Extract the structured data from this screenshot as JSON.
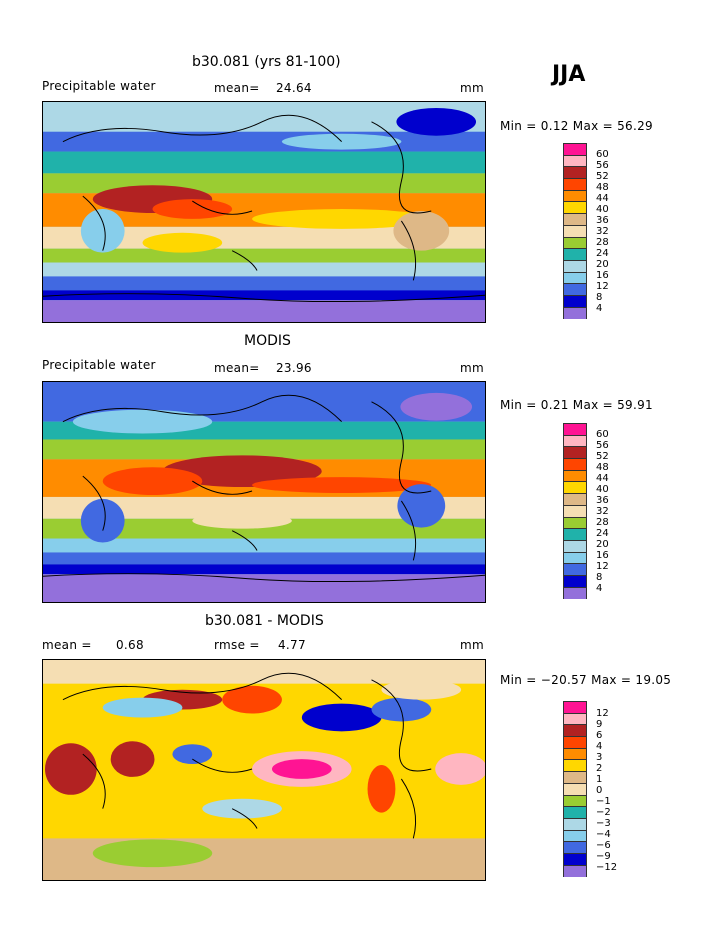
{
  "season": "JJA",
  "panels": [
    {
      "title": "b30.081 (yrs 81-100)",
      "left_label": "Precipitable water",
      "mean_label": "mean=",
      "mean_value": "24.64",
      "unit": "mm",
      "minmax_text": "Min =   0.12 Max =  56.29",
      "colorbar_ticks": [
        "60",
        "56",
        "52",
        "48",
        "44",
        "40",
        "36",
        "32",
        "28",
        "24",
        "20",
        "16",
        "12",
        "8",
        "4"
      ]
    },
    {
      "title": "MODIS",
      "left_label": "Precipitable water",
      "mean_label": "mean=",
      "mean_value": "23.96",
      "unit": "mm",
      "minmax_text": "Min =   0.21 Max =  59.91",
      "colorbar_ticks": [
        "60",
        "56",
        "52",
        "48",
        "44",
        "40",
        "36",
        "32",
        "28",
        "24",
        "20",
        "16",
        "12",
        "8",
        "4"
      ]
    },
    {
      "title": "b30.081 - MODIS",
      "left_label": "mean =",
      "mean_label": "",
      "mean_value": "0.68",
      "rmse_label": "rmse =",
      "rmse_value": "4.77",
      "unit": "mm",
      "minmax_text": "Min = −20.57 Max =  19.05",
      "colorbar_ticks": [
        "12",
        "9",
        "6",
        "4",
        "3",
        "2",
        "1",
        "0",
        "−1",
        "−2",
        "−3",
        "−4",
        "−6",
        "−9",
        "−12"
      ]
    }
  ],
  "palette": [
    "#ff1493",
    "#ffb6c1",
    "#b22222",
    "#ff4500",
    "#ff8c00",
    "#ffd700",
    "#deb887",
    "#f5deb3",
    "#9acd32",
    "#20b2aa",
    "#add8e6",
    "#87ceeb",
    "#4169e1",
    "#0000cd",
    "#9370db"
  ]
}
